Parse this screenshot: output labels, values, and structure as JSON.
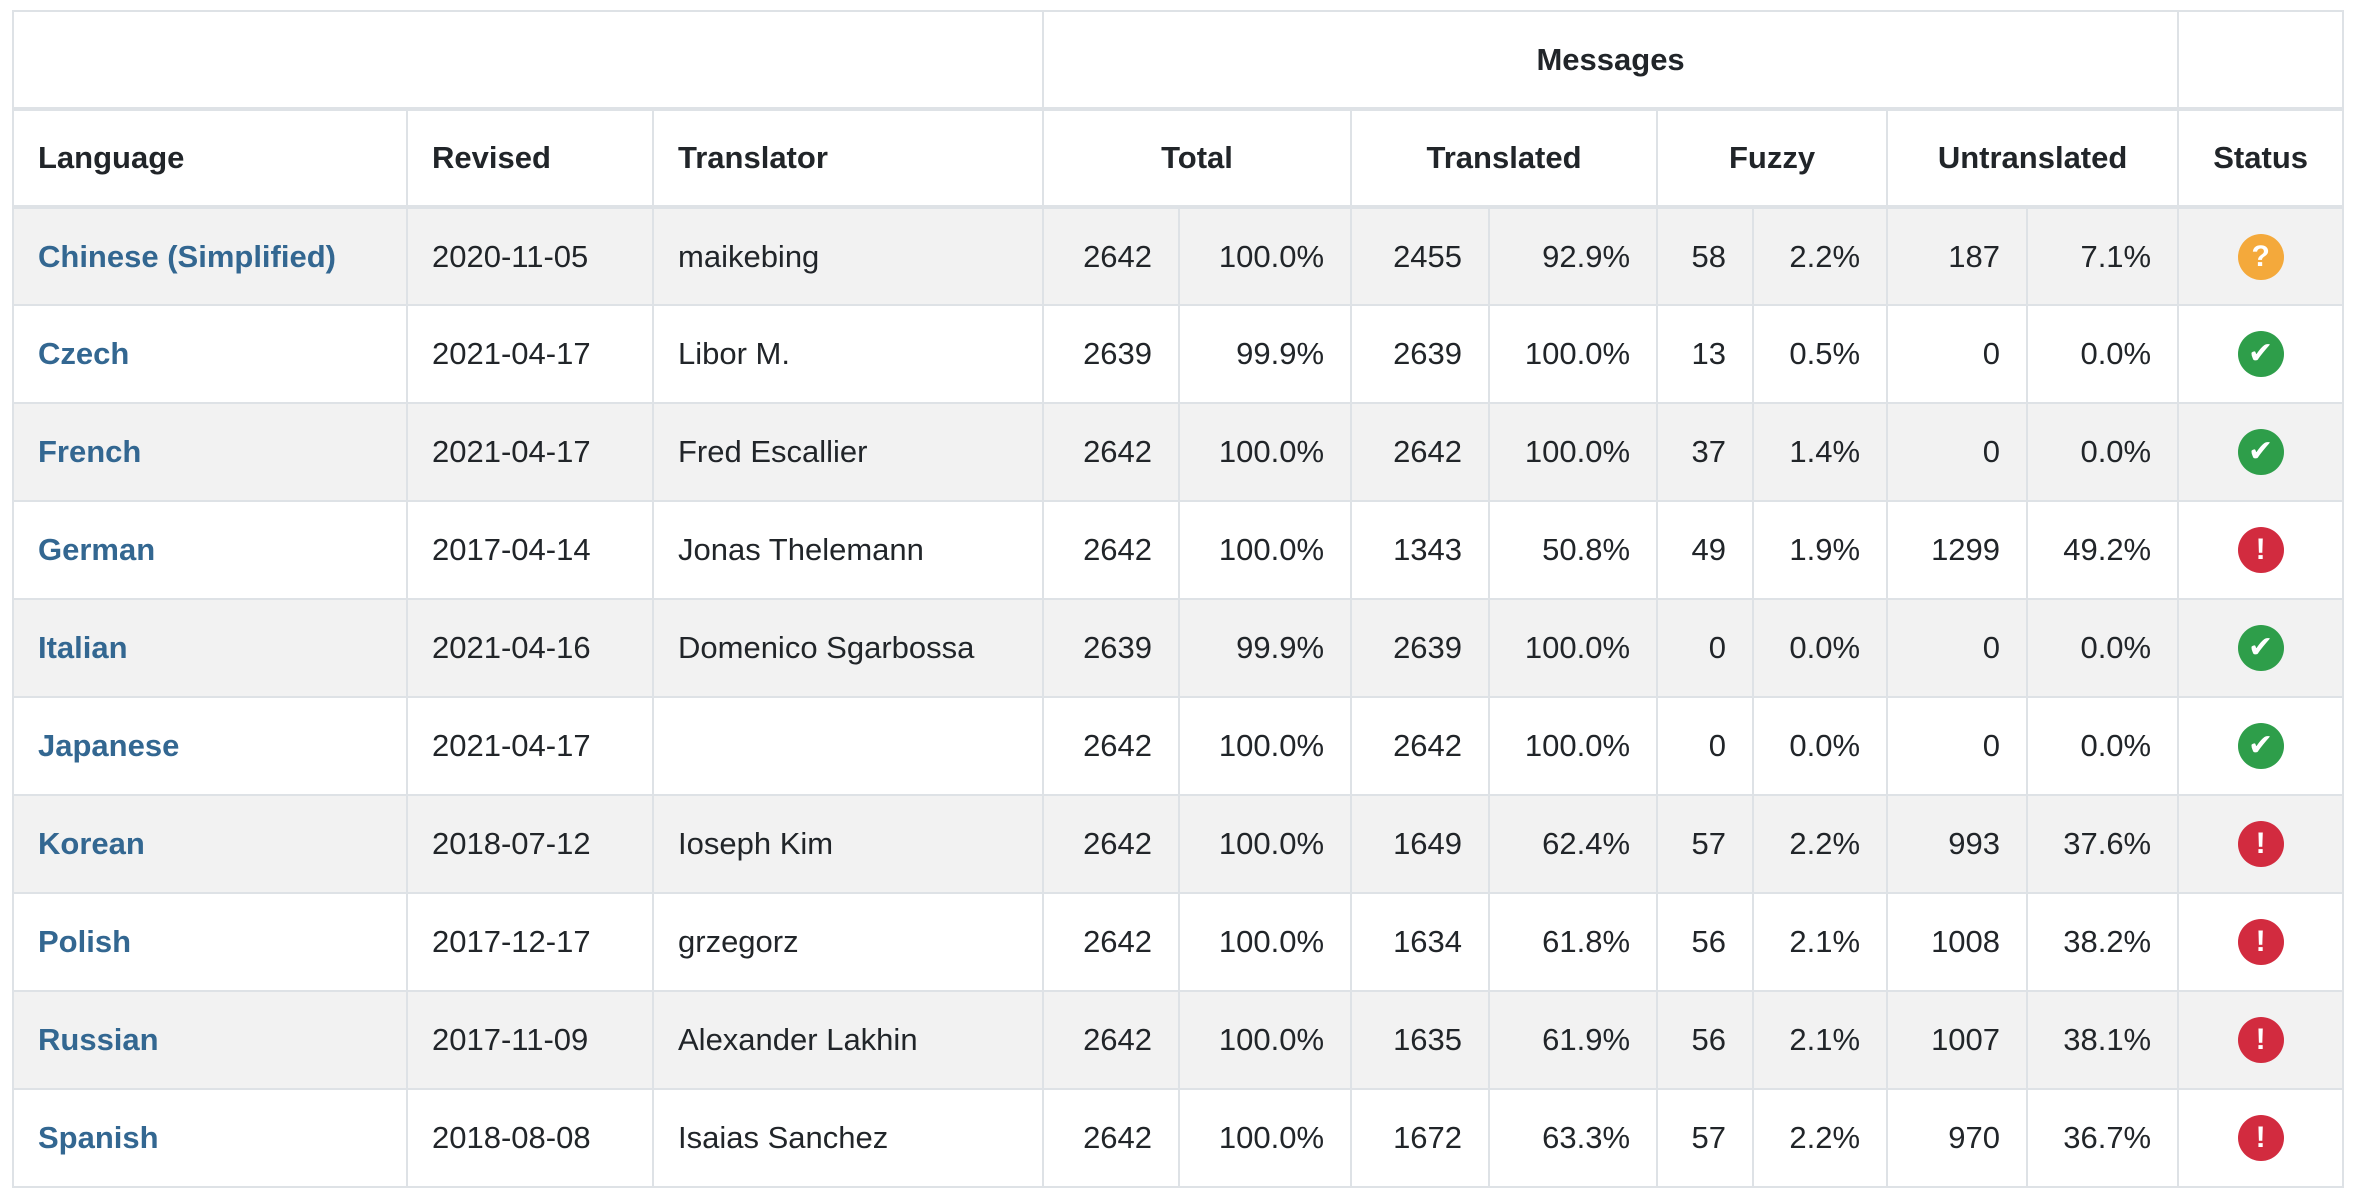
{
  "header": {
    "messages_group_label": "Messages",
    "columns": {
      "language": "Language",
      "revised": "Revised",
      "translator": "Translator",
      "total": "Total",
      "translated": "Translated",
      "fuzzy": "Fuzzy",
      "untranslated": "Untranslated",
      "status": "Status"
    }
  },
  "table": {
    "rows": [
      {
        "language": "Chinese (Simplified)",
        "revised": "2020-11-05",
        "translator": "maikebing",
        "total": "2642",
        "total_pct": "100.0%",
        "translated": "2455",
        "translated_pct": "92.9%",
        "fuzzy": "58",
        "fuzzy_pct": "2.2%",
        "untranslated": "187",
        "untranslated_pct": "7.1%",
        "status": "question"
      },
      {
        "language": "Czech",
        "revised": "2021-04-17",
        "translator": "Libor M.",
        "total": "2639",
        "total_pct": "99.9%",
        "translated": "2639",
        "translated_pct": "100.0%",
        "fuzzy": "13",
        "fuzzy_pct": "0.5%",
        "untranslated": "0",
        "untranslated_pct": "0.0%",
        "status": "check"
      },
      {
        "language": "French",
        "revised": "2021-04-17",
        "translator": "Fred Escallier",
        "total": "2642",
        "total_pct": "100.0%",
        "translated": "2642",
        "translated_pct": "100.0%",
        "fuzzy": "37",
        "fuzzy_pct": "1.4%",
        "untranslated": "0",
        "untranslated_pct": "0.0%",
        "status": "check"
      },
      {
        "language": "German",
        "revised": "2017-04-14",
        "translator": "Jonas Thelemann",
        "total": "2642",
        "total_pct": "100.0%",
        "translated": "1343",
        "translated_pct": "50.8%",
        "fuzzy": "49",
        "fuzzy_pct": "1.9%",
        "untranslated": "1299",
        "untranslated_pct": "49.2%",
        "status": "exclamation"
      },
      {
        "language": "Italian",
        "revised": "2021-04-16",
        "translator": "Domenico Sgarbossa",
        "total": "2639",
        "total_pct": "99.9%",
        "translated": "2639",
        "translated_pct": "100.0%",
        "fuzzy": "0",
        "fuzzy_pct": "0.0%",
        "untranslated": "0",
        "untranslated_pct": "0.0%",
        "status": "check"
      },
      {
        "language": "Japanese",
        "revised": "2021-04-17",
        "translator": "",
        "total": "2642",
        "total_pct": "100.0%",
        "translated": "2642",
        "translated_pct": "100.0%",
        "fuzzy": "0",
        "fuzzy_pct": "0.0%",
        "untranslated": "0",
        "untranslated_pct": "0.0%",
        "status": "check"
      },
      {
        "language": "Korean",
        "revised": "2018-07-12",
        "translator": "Ioseph Kim",
        "total": "2642",
        "total_pct": "100.0%",
        "translated": "1649",
        "translated_pct": "62.4%",
        "fuzzy": "57",
        "fuzzy_pct": "2.2%",
        "untranslated": "993",
        "untranslated_pct": "37.6%",
        "status": "exclamation"
      },
      {
        "language": "Polish",
        "revised": "2017-12-17",
        "translator": "grzegorz",
        "total": "2642",
        "total_pct": "100.0%",
        "translated": "1634",
        "translated_pct": "61.8%",
        "fuzzy": "56",
        "fuzzy_pct": "2.1%",
        "untranslated": "1008",
        "untranslated_pct": "38.2%",
        "status": "exclamation"
      },
      {
        "language": "Russian",
        "revised": "2017-11-09",
        "translator": "Alexander Lakhin",
        "total": "2642",
        "total_pct": "100.0%",
        "translated": "1635",
        "translated_pct": "61.9%",
        "fuzzy": "56",
        "fuzzy_pct": "2.1%",
        "untranslated": "1007",
        "untranslated_pct": "38.1%",
        "status": "exclamation"
      },
      {
        "language": "Spanish",
        "revised": "2018-08-08",
        "translator": "Isaias Sanchez",
        "total": "2642",
        "total_pct": "100.0%",
        "translated": "1672",
        "translated_pct": "63.3%",
        "fuzzy": "57",
        "fuzzy_pct": "2.2%",
        "untranslated": "970",
        "untranslated_pct": "36.7%",
        "status": "exclamation"
      }
    ]
  },
  "icons": {
    "question": {
      "glyph": "?",
      "name": "question-circle-icon"
    },
    "check": {
      "glyph": "✔",
      "name": "check-circle-icon"
    },
    "exclamation": {
      "glyph": "!",
      "name": "exclamation-circle-icon"
    }
  },
  "colors": {
    "link": "#336791",
    "warning": "#f4a93b",
    "success": "#2e9e4a",
    "danger": "#d22b3f",
    "stripe": "#f2f2f2",
    "border": "#dee2e6"
  }
}
